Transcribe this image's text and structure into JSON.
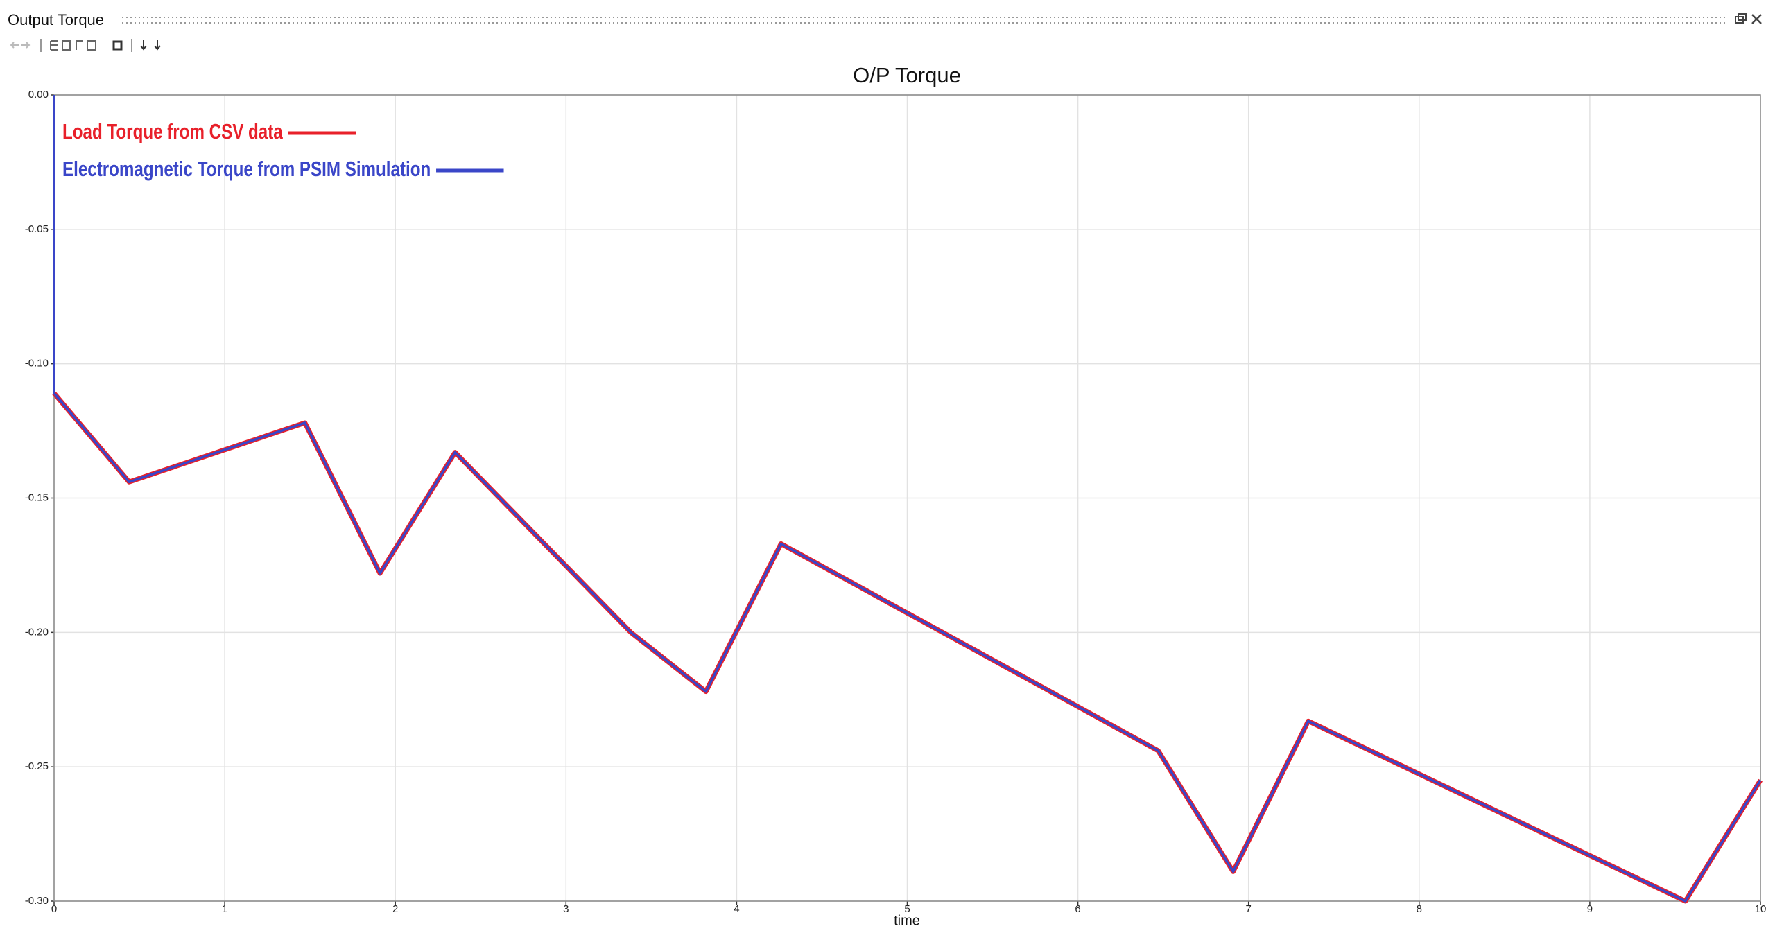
{
  "window": {
    "title": "Output Torque"
  },
  "chart_data": {
    "type": "line",
    "title": "O/P Torque",
    "x_label": "time",
    "x": [
      0,
      0,
      0.44,
      1.47,
      1.91,
      2.35,
      3.38,
      3.82,
      4.26,
      6.47,
      6.91,
      7.35,
      9.56,
      10
    ],
    "series": [
      {
        "name": "Load Torque from CSV data",
        "color": "#e8202a",
        "values": [
          null,
          -0.111,
          -0.144,
          -0.122,
          -0.178,
          -0.133,
          -0.2,
          -0.222,
          -0.167,
          -0.244,
          -0.289,
          -0.233,
          -0.3,
          -0.255
        ]
      },
      {
        "name": "Electromagnetic Torque from PSIM Simulation",
        "color": "#3a46c8",
        "values": [
          0,
          -0.111,
          -0.144,
          -0.122,
          -0.178,
          -0.133,
          -0.2,
          -0.222,
          -0.167,
          -0.244,
          -0.289,
          -0.233,
          -0.3,
          -0.255
        ]
      }
    ],
    "xlim": [
      0,
      10
    ],
    "xticks": [
      0,
      1,
      2,
      3,
      4,
      5,
      6,
      7,
      8,
      9,
      10
    ],
    "ylim": [
      -0.3,
      0
    ],
    "yticks": [
      {
        "value": -0.3,
        "label": "-0.30"
      },
      {
        "value": -0.25,
        "label": "-0.25"
      },
      {
        "value": -0.2,
        "label": "-0.20"
      },
      {
        "value": -0.15,
        "label": "-0.15"
      },
      {
        "value": -0.1,
        "label": "-0.10"
      },
      {
        "value": -0.05,
        "label": "-0.05"
      },
      {
        "value": 0,
        "label": "0.00"
      }
    ],
    "grid": true,
    "legend": "upper left"
  }
}
